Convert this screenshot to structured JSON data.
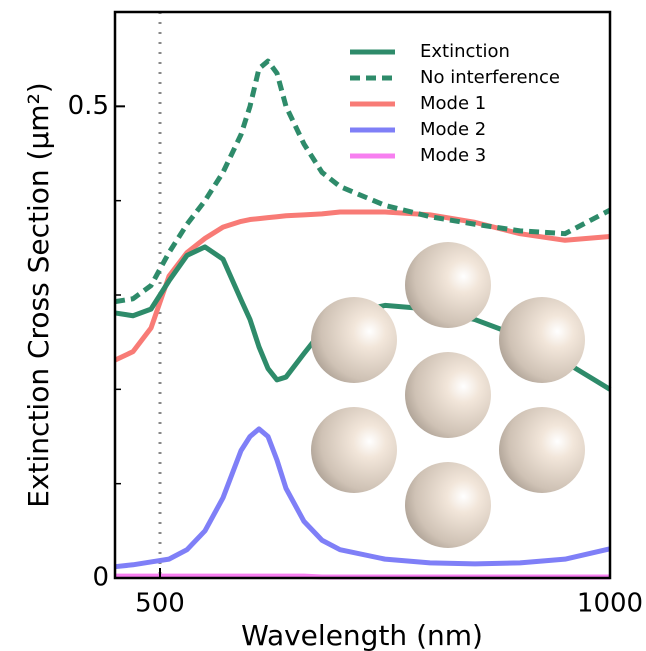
{
  "chart_data": {
    "type": "line",
    "xlabel": "Wavelength (nm)",
    "ylabel": "Extinction Cross Section (μm²)",
    "x": [
      450,
      470,
      490,
      510,
      530,
      550,
      570,
      590,
      600,
      610,
      620,
      630,
      640,
      660,
      680,
      700,
      750,
      800,
      850,
      900,
      950,
      1000
    ],
    "series": [
      {
        "name": "Extinction",
        "color": "#2e8b6a",
        "dash": false,
        "values": [
          0.281,
          0.278,
          0.285,
          0.315,
          0.342,
          0.351,
          0.338,
          0.295,
          0.274,
          0.245,
          0.222,
          0.21,
          0.213,
          0.238,
          0.262,
          0.278,
          0.289,
          0.285,
          0.274,
          0.256,
          0.229,
          0.2
        ]
      },
      {
        "name": "No interference",
        "color": "#2e8b6a",
        "dash": true,
        "values": [
          0.293,
          0.296,
          0.31,
          0.345,
          0.375,
          0.4,
          0.43,
          0.47,
          0.5,
          0.54,
          0.548,
          0.535,
          0.5,
          0.46,
          0.43,
          0.415,
          0.395,
          0.383,
          0.375,
          0.368,
          0.365,
          0.39
        ]
      },
      {
        "name": "Mode 1",
        "color": "#f87b76",
        "dash": false,
        "values": [
          0.231,
          0.24,
          0.265,
          0.32,
          0.345,
          0.36,
          0.372,
          0.378,
          0.38,
          0.381,
          0.382,
          0.383,
          0.384,
          0.385,
          0.386,
          0.388,
          0.388,
          0.385,
          0.377,
          0.365,
          0.358,
          0.362
        ]
      },
      {
        "name": "Mode 2",
        "color": "#7f7ff7",
        "dash": false,
        "values": [
          0.012,
          0.014,
          0.017,
          0.02,
          0.03,
          0.05,
          0.085,
          0.135,
          0.15,
          0.158,
          0.15,
          0.125,
          0.095,
          0.06,
          0.04,
          0.03,
          0.02,
          0.016,
          0.015,
          0.016,
          0.02,
          0.031
        ]
      },
      {
        "name": "Mode 3",
        "color": "#f77ff0",
        "dash": false,
        "values": [
          0.002,
          0.002,
          0.002,
          0.002,
          0.002,
          0.002,
          0.002,
          0.002,
          0.002,
          0.002,
          0.002,
          0.002,
          0.002,
          0.002,
          0.001,
          0.001,
          0.001,
          0.001,
          0.001,
          0.001,
          0.001,
          0.001
        ]
      }
    ],
    "xlim": [
      450,
      1000
    ],
    "xticks": [
      500,
      1000
    ],
    "ylim": [
      0,
      0.6
    ],
    "yticks": [
      0,
      0.5
    ],
    "yticks_minor": [
      0.1,
      0.2,
      0.3,
      0.4
    ],
    "vline": 500,
    "legend": "upper right"
  }
}
